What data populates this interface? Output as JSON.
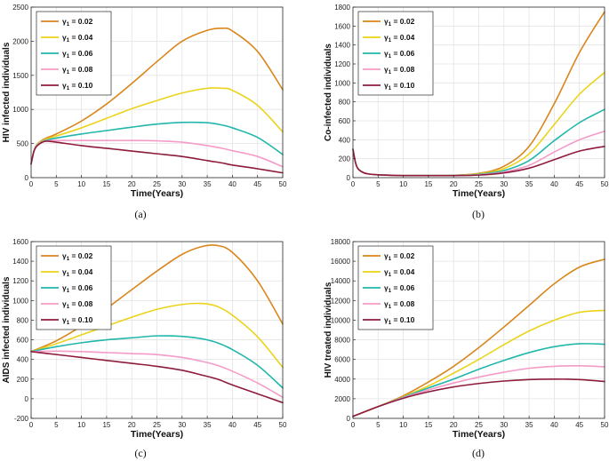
{
  "figure": {
    "colors": [
      "#D9861C",
      "#EBD31A",
      "#21B7AB",
      "#F49BC8",
      "#8E1B3B"
    ],
    "legend_entries": [
      "γ1 = 0.02",
      "γ1 = 0.04",
      "γ1 = 0.06",
      "γ1 = 0.08",
      "γ1 = 0.10"
    ]
  },
  "chart_data": [
    {
      "type": "line",
      "panel_label": "(a)",
      "title": "",
      "xlabel": "Time(Years)",
      "ylabel": "HIV infected individuals",
      "xlim": [
        0,
        50
      ],
      "ylim": [
        0,
        2500
      ],
      "xticks": [
        "0",
        "5",
        "10",
        "15",
        "20",
        "25",
        "30",
        "35",
        "40",
        "45",
        "50"
      ],
      "yticks": [
        "0",
        "500",
        "1000",
        "1500",
        "2000",
        "2500"
      ],
      "grid": true,
      "legend_position": "top-left",
      "x": [
        0,
        0.5,
        1,
        2,
        3,
        5,
        10,
        15,
        20,
        25,
        30,
        35,
        38,
        40,
        45,
        50
      ],
      "series": [
        {
          "name": "γ1 = 0.02",
          "values": [
            200,
            380,
            470,
            540,
            580,
            640,
            830,
            1080,
            1380,
            1700,
            2000,
            2160,
            2190,
            2150,
            1850,
            1290
          ]
        },
        {
          "name": "γ1 = 0.04",
          "values": [
            200,
            380,
            465,
            530,
            565,
            610,
            730,
            870,
            1010,
            1130,
            1240,
            1310,
            1310,
            1280,
            1060,
            670
          ]
        },
        {
          "name": "γ1 = 0.06",
          "values": [
            200,
            375,
            460,
            520,
            550,
            580,
            640,
            690,
            740,
            785,
            810,
            805,
            770,
            730,
            590,
            340
          ]
        },
        {
          "name": "γ1 = 0.08",
          "values": [
            200,
            375,
            455,
            515,
            540,
            545,
            545,
            545,
            545,
            540,
            520,
            470,
            430,
            395,
            310,
            160
          ]
        },
        {
          "name": "γ1 = 0.10",
          "values": [
            200,
            370,
            450,
            510,
            535,
            520,
            470,
            430,
            390,
            350,
            310,
            250,
            215,
            185,
            130,
            70
          ]
        }
      ]
    },
    {
      "type": "line",
      "panel_label": "(b)",
      "title": "",
      "xlabel": "Time(Years)",
      "ylabel": "Co-infected individuals",
      "xlim": [
        0,
        50
      ],
      "ylim": [
        0,
        1800
      ],
      "xticks": [
        "0",
        "5",
        "10",
        "15",
        "20",
        "25",
        "30",
        "35",
        "40",
        "45",
        "50"
      ],
      "yticks": [
        "0",
        "200",
        "400",
        "600",
        "800",
        "1000",
        "1200",
        "1400",
        "1600",
        "1800"
      ],
      "grid": true,
      "legend_position": "top-left",
      "x": [
        0,
        0.5,
        1,
        2,
        3,
        5,
        10,
        15,
        20,
        25,
        30,
        35,
        40,
        45,
        50
      ],
      "series": [
        {
          "name": "γ1 = 0.02",
          "values": [
            300,
            160,
            95,
            55,
            40,
            30,
            22,
            22,
            25,
            45,
            120,
            330,
            780,
            1320,
            1750
          ]
        },
        {
          "name": "γ1 = 0.04",
          "values": [
            300,
            160,
            95,
            55,
            40,
            30,
            22,
            22,
            24,
            40,
            95,
            250,
            560,
            880,
            1110
          ]
        },
        {
          "name": "γ1 = 0.06",
          "values": [
            300,
            160,
            95,
            55,
            40,
            30,
            22,
            22,
            23,
            35,
            75,
            180,
            390,
            580,
            720
          ]
        },
        {
          "name": "γ1 = 0.08",
          "values": [
            300,
            160,
            95,
            55,
            40,
            30,
            22,
            22,
            22,
            30,
            60,
            130,
            270,
            400,
            490
          ]
        },
        {
          "name": "γ1 = 0.10",
          "values": [
            300,
            160,
            95,
            55,
            40,
            30,
            22,
            22,
            22,
            27,
            50,
            100,
            190,
            280,
            330
          ]
        }
      ]
    },
    {
      "type": "line",
      "panel_label": "(c)",
      "title": "",
      "xlabel": "Time(Years)",
      "ylabel": "AIDS infected individuals",
      "xlim": [
        0,
        50
      ],
      "ylim": [
        -200,
        1600
      ],
      "xticks": [
        "0",
        "5",
        "10",
        "15",
        "20",
        "25",
        "30",
        "35",
        "40",
        "45",
        "50"
      ],
      "yticks": [
        "-200",
        "0",
        "200",
        "400",
        "600",
        "800",
        "1000",
        "1200",
        "1400",
        "1600"
      ],
      "grid": true,
      "legend_position": "top-left",
      "x": [
        0,
        5,
        10,
        15,
        20,
        25,
        30,
        34,
        37,
        40,
        45,
        50
      ],
      "series": [
        {
          "name": "γ1 = 0.02",
          "values": [
            480,
            590,
            740,
            920,
            1110,
            1300,
            1470,
            1550,
            1560,
            1490,
            1200,
            760
          ]
        },
        {
          "name": "γ1 = 0.04",
          "values": [
            480,
            560,
            650,
            740,
            830,
            910,
            960,
            970,
            940,
            850,
            630,
            320
          ]
        },
        {
          "name": "γ1 = 0.06",
          "values": [
            480,
            530,
            570,
            600,
            620,
            640,
            635,
            610,
            570,
            500,
            340,
            110
          ]
        },
        {
          "name": "γ1 = 0.08",
          "values": [
            480,
            485,
            480,
            470,
            460,
            450,
            420,
            380,
            340,
            280,
            160,
            15
          ]
        },
        {
          "name": "γ1 = 0.10",
          "values": [
            480,
            450,
            420,
            390,
            360,
            330,
            290,
            240,
            200,
            140,
            50,
            -40
          ]
        }
      ]
    },
    {
      "type": "line",
      "panel_label": "(d)",
      "title": "",
      "xlabel": "Time(Years)",
      "ylabel": "HIV treated individuals",
      "xlim": [
        0,
        50
      ],
      "ylim": [
        0,
        18000
      ],
      "xticks": [
        "0",
        "5",
        "10",
        "15",
        "20",
        "25",
        "30",
        "35",
        "40",
        "45",
        "50"
      ],
      "yticks": [
        "0",
        "2000",
        "4000",
        "6000",
        "8000",
        "10000",
        "12000",
        "14000",
        "16000",
        "18000"
      ],
      "grid": true,
      "legend_position": "top-left",
      "x": [
        0,
        5,
        10,
        15,
        20,
        25,
        30,
        35,
        40,
        45,
        50
      ],
      "series": [
        {
          "name": "γ1 = 0.02",
          "values": [
            200,
            1200,
            2300,
            3700,
            5300,
            7200,
            9300,
            11500,
            13700,
            15400,
            16200
          ]
        },
        {
          "name": "γ1 = 0.04",
          "values": [
            200,
            1200,
            2200,
            3300,
            4600,
            6000,
            7500,
            8900,
            10000,
            10800,
            11000
          ]
        },
        {
          "name": "γ1 = 0.06",
          "values": [
            200,
            1200,
            2150,
            3100,
            4000,
            5000,
            5900,
            6700,
            7300,
            7600,
            7550
          ]
        },
        {
          "name": "γ1 = 0.08",
          "values": [
            200,
            1200,
            2100,
            2900,
            3600,
            4200,
            4700,
            5100,
            5300,
            5350,
            5250
          ]
        },
        {
          "name": "γ1 = 0.10",
          "values": [
            200,
            1200,
            2050,
            2700,
            3200,
            3550,
            3800,
            3950,
            4000,
            3950,
            3750
          ]
        }
      ]
    }
  ]
}
